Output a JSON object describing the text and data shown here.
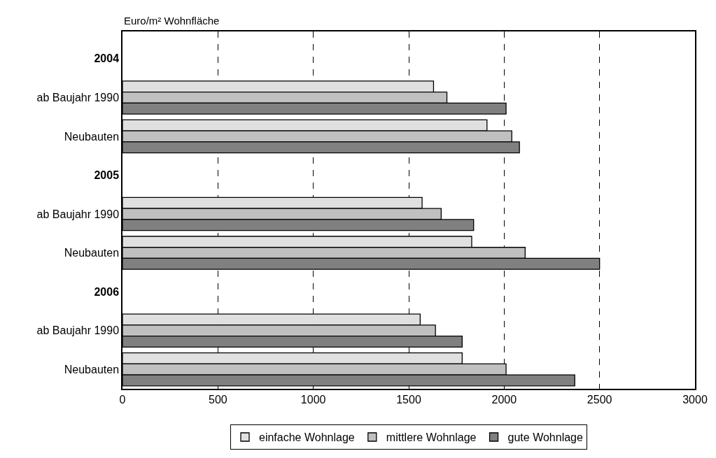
{
  "chart_data": {
    "type": "bar",
    "orientation": "horizontal",
    "categories": [
      "2004",
      "ab Baujahr 1990",
      "Neubauten",
      "2005",
      "ab Baujahr 1990",
      "Neubauten",
      "2006",
      "ab Baujahr 1990",
      "Neubauten"
    ],
    "series": [
      {
        "name": "einfache Wohnlage",
        "color": "#e0e0e0",
        "values": [
          null,
          1630,
          1910,
          null,
          1570,
          1830,
          null,
          1560,
          1780
        ]
      },
      {
        "name": "mittlere Wohnlage",
        "color": "#c0c0c0",
        "values": [
          null,
          1700,
          2040,
          null,
          1670,
          2110,
          null,
          1640,
          2010
        ]
      },
      {
        "name": "gute Wohnlage",
        "color": "#808080",
        "values": [
          null,
          2010,
          2080,
          null,
          1840,
          2500,
          null,
          1780,
          2370
        ]
      }
    ],
    "xlim": [
      0,
      3000
    ],
    "xticks": [
      0,
      500,
      1000,
      1500,
      2000,
      2500,
      3000
    ],
    "grid": "x",
    "legend": "bottom",
    "annotations": [
      "Euro/m² Wohnfläche"
    ]
  }
}
